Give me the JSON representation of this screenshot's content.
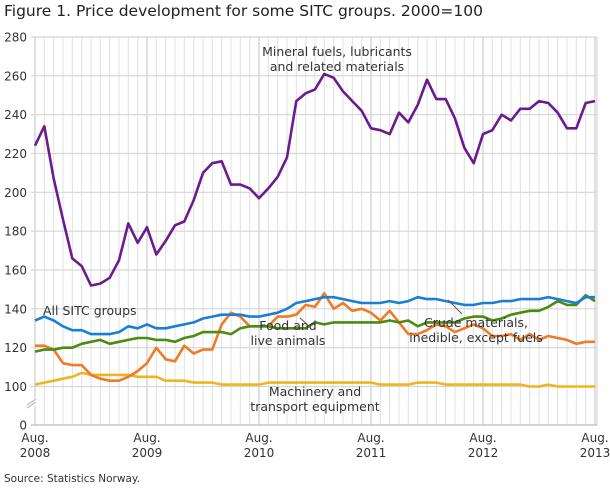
{
  "chart_data": {
    "type": "line",
    "title": "Figure 1. Price development for some SITC groups. 2000=100",
    "source": "Source: Statistics Norway.",
    "xlabel": "",
    "ylabel": "",
    "x_start": "Aug. 2008",
    "x_end": "Aug. 2013",
    "x_frequency": "monthly",
    "x_tick_labels": [
      [
        "Aug.",
        "2008"
      ],
      [
        "Aug.",
        "2009"
      ],
      [
        "Aug.",
        "2010"
      ],
      [
        "Aug.",
        "2011"
      ],
      [
        "Aug.",
        "2012"
      ],
      [
        "Aug.",
        "2013"
      ]
    ],
    "y_tick_labels": [
      "0",
      "100",
      "120",
      "140",
      "160",
      "180",
      "200",
      "220",
      "240",
      "260",
      "280"
    ],
    "ylim": [
      0,
      280
    ],
    "y_axis_break": "between 0 and 100",
    "grid": true,
    "legend": "inline labels",
    "series": [
      {
        "name": "Mineral fuels, lubricants and related materials",
        "label_lines": [
          "Mineral fuels, lubricants",
          "and related materials"
        ],
        "color": "#6a1b8e",
        "values": [
          224,
          234,
          207,
          186,
          166,
          162,
          152,
          153,
          156,
          165,
          184,
          174,
          182,
          168,
          175,
          183,
          185,
          196,
          210,
          215,
          216,
          204,
          204,
          202,
          197,
          202,
          208,
          218,
          247,
          251,
          253,
          261,
          259,
          252,
          247,
          242,
          233,
          232,
          230,
          241,
          236,
          245,
          258,
          248,
          248,
          238,
          223,
          215,
          230,
          232,
          240,
          237,
          243,
          243,
          247,
          246,
          241,
          233,
          233,
          246,
          247
        ]
      },
      {
        "name": "All SITC groups",
        "label_lines": [
          "All SITC groups"
        ],
        "color": "#1a7fd4",
        "values": [
          134,
          136,
          134,
          131,
          129,
          129,
          127,
          127,
          127,
          128,
          131,
          130,
          132,
          130,
          130,
          131,
          132,
          133,
          135,
          136,
          137,
          137,
          137,
          136,
          136,
          137,
          138,
          140,
          143,
          144,
          145,
          146,
          146,
          145,
          144,
          143,
          143,
          143,
          144,
          143,
          144,
          146,
          145,
          145,
          144,
          143,
          142,
          142,
          143,
          143,
          144,
          144,
          145,
          145,
          145,
          146,
          145,
          144,
          143,
          146,
          146
        ]
      },
      {
        "name": "Food and live animals",
        "label_lines": [
          "Food and",
          "live animals"
        ],
        "color": "#4a8c10",
        "values": [
          118,
          119,
          119,
          120,
          120,
          122,
          123,
          124,
          122,
          123,
          124,
          125,
          125,
          124,
          124,
          123,
          125,
          126,
          128,
          128,
          128,
          127,
          130,
          131,
          131,
          131,
          130,
          130,
          130,
          130,
          133,
          132,
          133,
          133,
          133,
          133,
          133,
          133,
          134,
          133,
          134,
          131,
          133,
          133,
          133,
          133,
          135,
          136,
          136,
          134,
          135,
          137,
          138,
          139,
          139,
          141,
          144,
          142,
          142,
          147,
          144
        ]
      },
      {
        "name": "Crude materials, inedible, except fuels",
        "label_lines": [
          "Crude materials,",
          "inedible, except fuels"
        ],
        "color": "#f07a28",
        "values": [
          121,
          121,
          119,
          112,
          111,
          111,
          106,
          104,
          103,
          103,
          105,
          108,
          112,
          120,
          114,
          113,
          121,
          117,
          119,
          119,
          132,
          138,
          136,
          131,
          131,
          131,
          136,
          136,
          137,
          142,
          141,
          148,
          140,
          143,
          139,
          140,
          138,
          134,
          139,
          133,
          127,
          127,
          129,
          132,
          131,
          128,
          130,
          132,
          130,
          126,
          126,
          127,
          124,
          127,
          124,
          126,
          125,
          124,
          122,
          123,
          123
        ]
      },
      {
        "name": "Machinery and transport equipment",
        "label_lines": [
          "Machinery and",
          "transport equipment"
        ],
        "color": "#f0b41e",
        "values": [
          101,
          102,
          103,
          104,
          105,
          107,
          106,
          106,
          106,
          106,
          106,
          105,
          105,
          105,
          103,
          103,
          103,
          102,
          102,
          102,
          101,
          101,
          101,
          101,
          101,
          102,
          102,
          102,
          102,
          102,
          102,
          102,
          102,
          102,
          102,
          102,
          102,
          101,
          101,
          101,
          101,
          102,
          102,
          102,
          101,
          101,
          101,
          101,
          101,
          101,
          101,
          101,
          101,
          100,
          100,
          101,
          100,
          100,
          100,
          100,
          100
        ]
      }
    ]
  }
}
